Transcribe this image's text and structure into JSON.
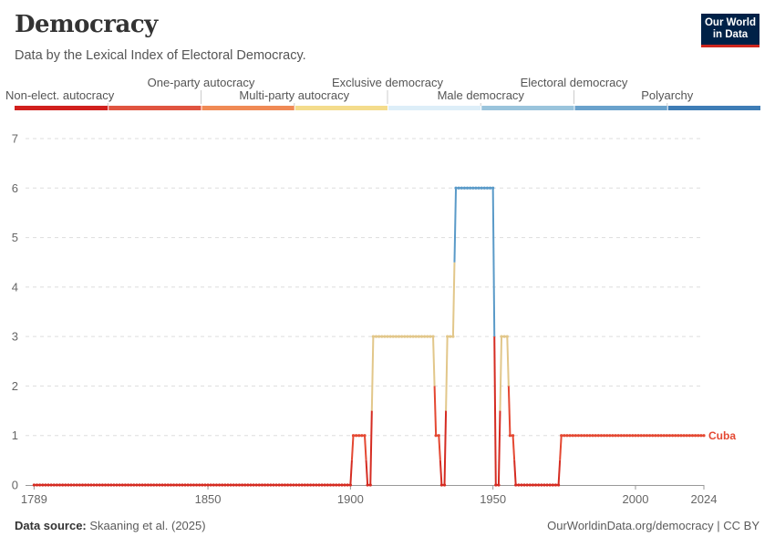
{
  "header": {
    "title": "Democracy",
    "subtitle": "Data by the Lexical Index of Electoral Democracy.",
    "logo_line1": "Our World",
    "logo_line2": "in Data"
  },
  "footer": {
    "source_label": "Data source:",
    "source_text": "Skaaning et al. (2025)",
    "link_text": "OurWorldinData.org/democracy | CC BY"
  },
  "colors": {
    "scale": [
      "#d1201d",
      "#e05440",
      "#f08a55",
      "#f4dc8c",
      "#ddeef8",
      "#9ac4dc",
      "#6aa2cc",
      "#3e7db6"
    ],
    "line_by_level": [
      "#d52c22",
      "#e44832",
      "#f28c55",
      "#e2c78a",
      "#dbeef6",
      "#8cbcd8",
      "#5a9ac8",
      "#3b7bb4"
    ]
  },
  "chart_data": {
    "type": "line",
    "title": "Democracy",
    "xlabel": "",
    "ylabel": "",
    "xlim": [
      1786,
      2024
    ],
    "ylim": [
      0,
      7
    ],
    "x_ticks": [
      1789,
      1850,
      1900,
      1950,
      2000,
      2024
    ],
    "y_ticks": [
      0,
      1,
      2,
      3,
      4,
      5,
      6,
      7
    ],
    "grid": "horizontal-dashed",
    "legend": {
      "placement": "top",
      "categories": [
        "Non-elect. autocracy",
        "One-party autocracy",
        "Multi-party autocracy",
        "Exclusive democracy",
        "Male democracy",
        "Electoral democracy",
        "Polyarchy"
      ]
    },
    "series": [
      {
        "name": "Cuba",
        "segments": [
          {
            "start": 1789,
            "end": 1900,
            "value": 0
          },
          {
            "start": 1901,
            "end": 1905,
            "value": 1
          },
          {
            "start": 1906,
            "end": 1907,
            "value": 0
          },
          {
            "start": 1908,
            "end": 1929,
            "value": 3
          },
          {
            "start": 1930,
            "end": 1931,
            "value": 1
          },
          {
            "start": 1932,
            "end": 1933,
            "value": 0
          },
          {
            "start": 1934,
            "end": 1936,
            "value": 3
          },
          {
            "start": 1937,
            "end": 1950,
            "value": 6
          },
          {
            "start": 1951,
            "end": 1952,
            "value": 0
          },
          {
            "start": 1953,
            "end": 1955,
            "value": 3
          },
          {
            "start": 1956,
            "end": 1957,
            "value": 1
          },
          {
            "start": 1958,
            "end": 1973,
            "value": 0
          },
          {
            "start": 1974,
            "end": 2024,
            "value": 1
          }
        ]
      }
    ]
  }
}
